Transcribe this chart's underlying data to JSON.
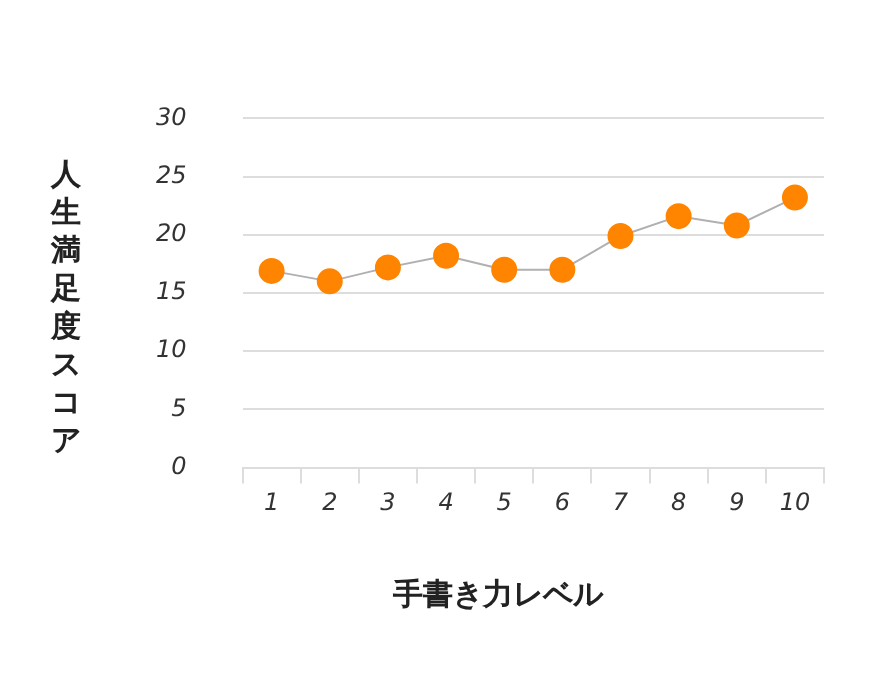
{
  "chart_data": {
    "type": "line",
    "xlabel": "手書き力レベル",
    "ylabel": "人生満足度スコア",
    "categories": [
      "1",
      "2",
      "3",
      "4",
      "5",
      "6",
      "7",
      "8",
      "9",
      "10"
    ],
    "series": [
      {
        "color": "#ff8400",
        "values": [
          16.9,
          16.0,
          17.2,
          18.2,
          17.0,
          17.0,
          19.9,
          21.6,
          20.8,
          23.2
        ]
      }
    ],
    "ylim": [
      0,
      30
    ],
    "yticks": [
      0,
      5,
      10,
      15,
      20,
      25,
      30
    ],
    "grid": "y",
    "legend": false,
    "marker": "circle",
    "line_style": "solid"
  }
}
